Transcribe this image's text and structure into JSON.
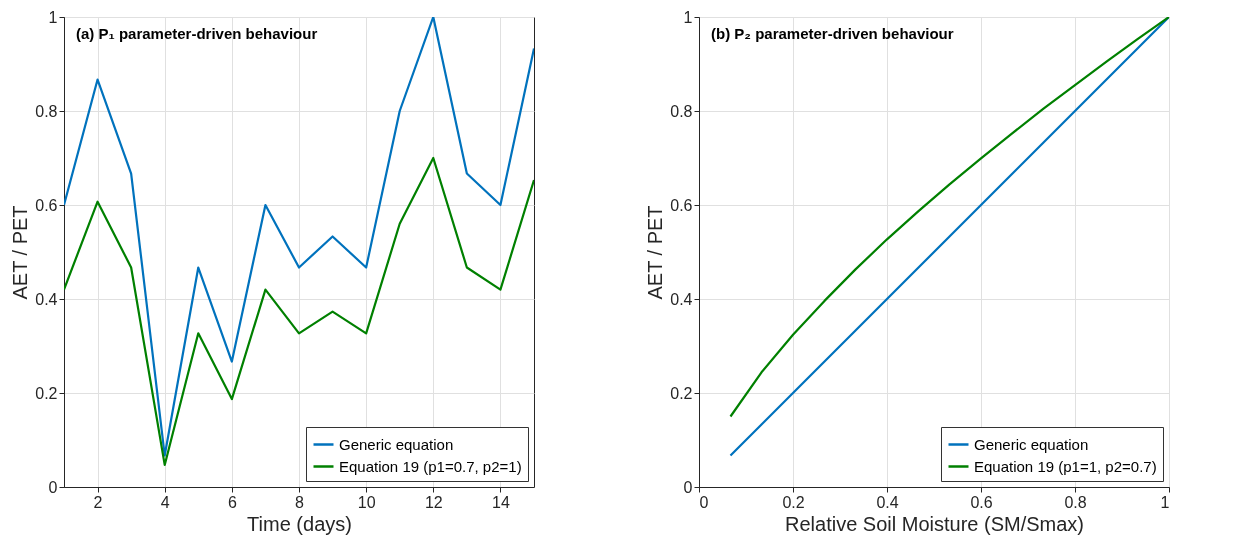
{
  "chart_data": [
    {
      "type": "line",
      "title": "(a) P₁ parameter-driven behaviour",
      "xlabel": "Time (days)",
      "ylabel": "AET / PET",
      "x": [
        1,
        2,
        3,
        4,
        5,
        6,
        7,
        8,
        9,
        10,
        11,
        12,
        13,
        14,
        15
      ],
      "series": [
        {
          "name": "Generic equation",
          "color": "#0072bd",
          "values": [
            0.6,
            0.867,
            0.667,
            0.067,
            0.467,
            0.267,
            0.6,
            0.467,
            0.533,
            0.467,
            0.8,
            1.0,
            0.667,
            0.6,
            0.933
          ]
        },
        {
          "name": "Equation 19 (p1=0.7, p2=1)",
          "color": "#008000",
          "values": [
            0.42,
            0.607,
            0.467,
            0.047,
            0.327,
            0.187,
            0.42,
            0.327,
            0.373,
            0.327,
            0.56,
            0.7,
            0.467,
            0.42,
            0.653
          ]
        }
      ],
      "xlim": [
        1,
        15
      ],
      "xticks": [
        2,
        4,
        6,
        8,
        10,
        12,
        14
      ],
      "ylim": [
        0,
        1
      ],
      "yticks": [
        0,
        0.2,
        0.4,
        0.6,
        0.8,
        1
      ],
      "grid": true,
      "legend": "bottom right"
    },
    {
      "type": "line",
      "title": "(b) P₂ parameter-driven behaviour",
      "xlabel": "Relative Soil Moisture (SM/Smax)",
      "ylabel": "AET / PET",
      "x": [
        0.067,
        0.133,
        0.2,
        0.267,
        0.333,
        0.4,
        0.467,
        0.533,
        0.6,
        0.667,
        0.733,
        0.8,
        0.867,
        0.933,
        1.0
      ],
      "series": [
        {
          "name": "Generic equation",
          "color": "#0072bd",
          "values": [
            0.067,
            0.133,
            0.2,
            0.267,
            0.333,
            0.4,
            0.467,
            0.533,
            0.6,
            0.667,
            0.733,
            0.8,
            0.867,
            0.933,
            1.0
          ]
        },
        {
          "name": "Equation 19 (p1=1, p2=0.7)",
          "color": "#008000",
          "values": [
            0.15,
            0.244,
            0.324,
            0.396,
            0.463,
            0.527,
            0.587,
            0.644,
            0.699,
            0.753,
            0.805,
            0.855,
            0.905,
            0.953,
            1.0
          ]
        }
      ],
      "xlim": [
        0,
        1
      ],
      "xticks": [
        0,
        0.2,
        0.4,
        0.6,
        0.8,
        1
      ],
      "ylim": [
        0,
        1
      ],
      "yticks": [
        0,
        0.2,
        0.4,
        0.6,
        0.8,
        1
      ],
      "grid": true,
      "legend": "bottom right"
    }
  ]
}
